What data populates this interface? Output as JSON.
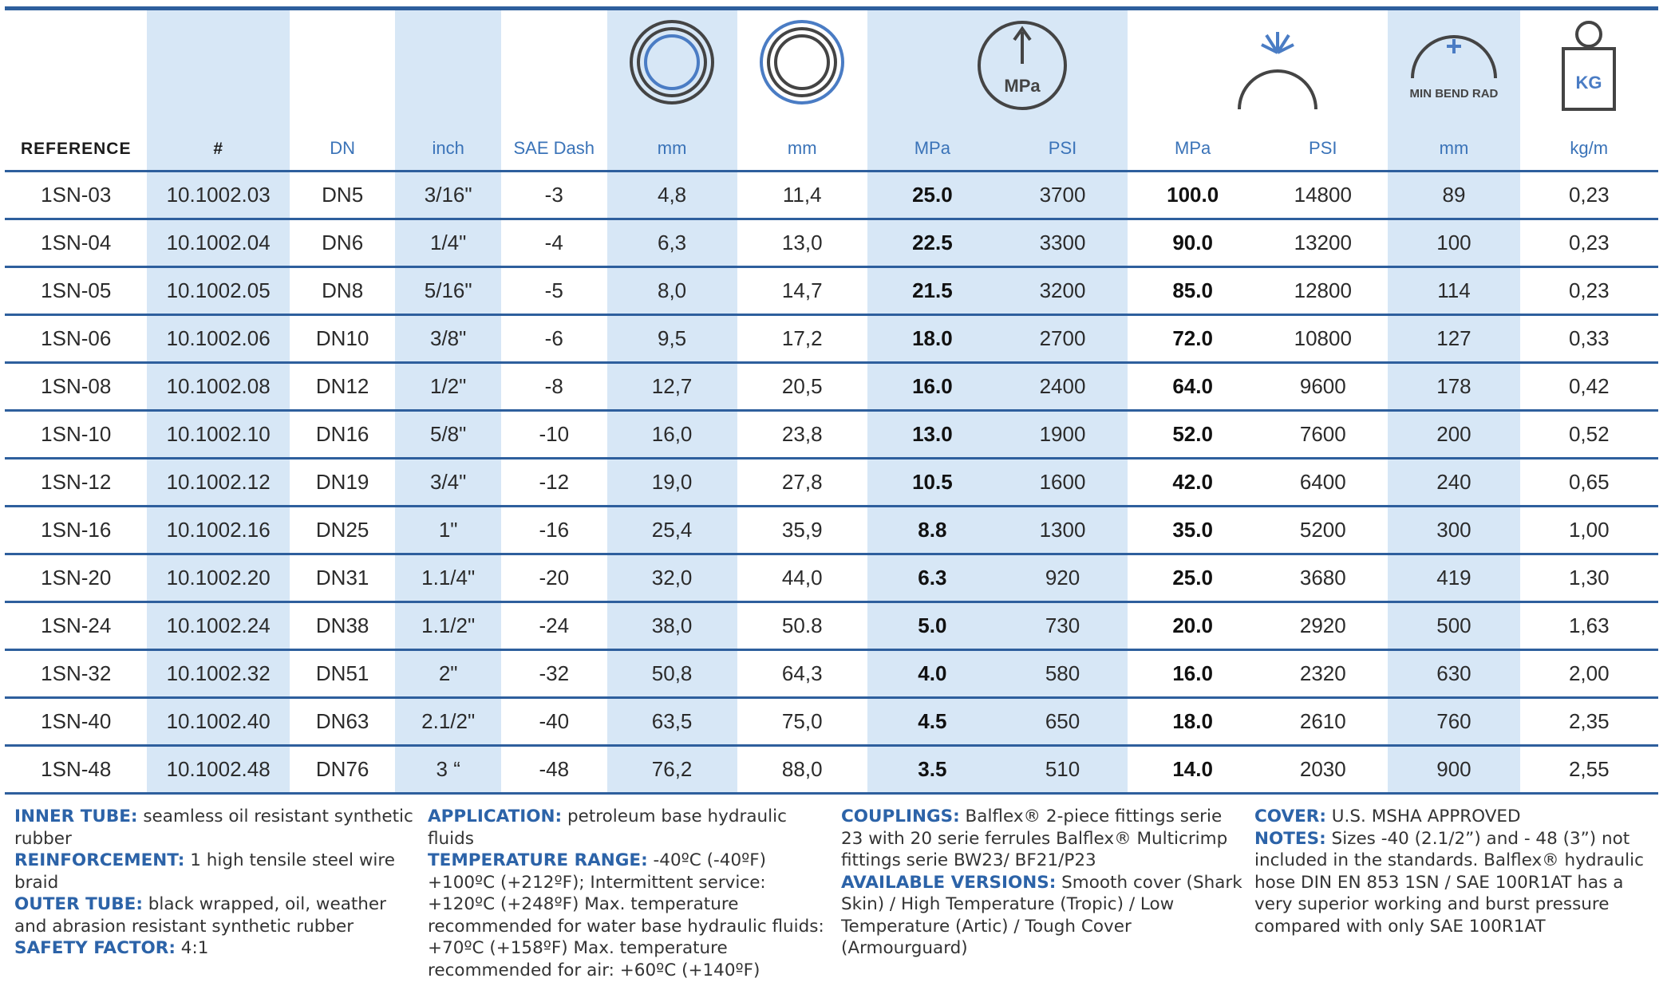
{
  "colors": {
    "accent": "#2e5f9d",
    "label_blue": "#3a73b8",
    "shade": "#d7e7f6"
  },
  "header": {
    "reference": "REFERENCE",
    "number": "#",
    "dn": "DN",
    "inch": "inch",
    "sae": "SAE Dash",
    "id_mm": "mm",
    "od_mm": "mm",
    "wp_mpa": "MPa",
    "wp_psi": "PSI",
    "bp_mpa": "MPa",
    "bp_psi": "PSI",
    "bend_mm": "mm",
    "weight": "kg/m",
    "icons": {
      "inner": "inner-diameter-icon",
      "outer": "outer-diameter-icon",
      "working": "working-pressure-gauge-icon",
      "burst": "burst-pressure-icon",
      "bend": "min-bend-radius-icon",
      "weight": "weight-icon"
    },
    "gauge_text": "MPa",
    "bend_text": "MIN BEND RAD",
    "weight_text": "KG"
  },
  "rows": [
    {
      "ref": "1SN-03",
      "num": "10.1002.03",
      "dn": "DN5",
      "inch": "3/16\"",
      "sae": "-3",
      "id": "4,8",
      "od": "11,4",
      "wp_mpa": "25.0",
      "wp_psi": "3700",
      "bp_mpa": "100.0",
      "bp_psi": "14800",
      "bend": "89",
      "kg": "0,23"
    },
    {
      "ref": "1SN-04",
      "num": "10.1002.04",
      "dn": "DN6",
      "inch": "1/4\"",
      "sae": "-4",
      "id": "6,3",
      "od": "13,0",
      "wp_mpa": "22.5",
      "wp_psi": "3300",
      "bp_mpa": "90.0",
      "bp_psi": "13200",
      "bend": "100",
      "kg": "0,23"
    },
    {
      "ref": "1SN-05",
      "num": "10.1002.05",
      "dn": "DN8",
      "inch": "5/16\"",
      "sae": "-5",
      "id": "8,0",
      "od": "14,7",
      "wp_mpa": "21.5",
      "wp_psi": "3200",
      "bp_mpa": "85.0",
      "bp_psi": "12800",
      "bend": "114",
      "kg": "0,23"
    },
    {
      "ref": "1SN-06",
      "num": "10.1002.06",
      "dn": "DN10",
      "inch": "3/8\"",
      "sae": "-6",
      "id": "9,5",
      "od": "17,2",
      "wp_mpa": "18.0",
      "wp_psi": "2700",
      "bp_mpa": "72.0",
      "bp_psi": "10800",
      "bend": "127",
      "kg": "0,33"
    },
    {
      "ref": "1SN-08",
      "num": "10.1002.08",
      "dn": "DN12",
      "inch": "1/2\"",
      "sae": "-8",
      "id": "12,7",
      "od": "20,5",
      "wp_mpa": "16.0",
      "wp_psi": "2400",
      "bp_mpa": "64.0",
      "bp_psi": "9600",
      "bend": "178",
      "kg": "0,42"
    },
    {
      "ref": "1SN-10",
      "num": "10.1002.10",
      "dn": "DN16",
      "inch": "5/8\"",
      "sae": "-10",
      "id": "16,0",
      "od": "23,8",
      "wp_mpa": "13.0",
      "wp_psi": "1900",
      "bp_mpa": "52.0",
      "bp_psi": "7600",
      "bend": "200",
      "kg": "0,52"
    },
    {
      "ref": "1SN-12",
      "num": "10.1002.12",
      "dn": "DN19",
      "inch": "3/4\"",
      "sae": "-12",
      "id": "19,0",
      "od": "27,8",
      "wp_mpa": "10.5",
      "wp_psi": "1600",
      "bp_mpa": "42.0",
      "bp_psi": "6400",
      "bend": "240",
      "kg": "0,65"
    },
    {
      "ref": "1SN-16",
      "num": "10.1002.16",
      "dn": "DN25",
      "inch": "1\"",
      "sae": "-16",
      "id": "25,4",
      "od": "35,9",
      "wp_mpa": "8.8",
      "wp_psi": "1300",
      "bp_mpa": "35.0",
      "bp_psi": "5200",
      "bend": "300",
      "kg": "1,00"
    },
    {
      "ref": "1SN-20",
      "num": "10.1002.20",
      "dn": "DN31",
      "inch": "1.1/4\"",
      "sae": "-20",
      "id": "32,0",
      "od": "44,0",
      "wp_mpa": "6.3",
      "wp_psi": "920",
      "bp_mpa": "25.0",
      "bp_psi": "3680",
      "bend": "419",
      "kg": "1,30"
    },
    {
      "ref": "1SN-24",
      "num": "10.1002.24",
      "dn": "DN38",
      "inch": "1.1/2\"",
      "sae": "-24",
      "id": "38,0",
      "od": "50.8",
      "wp_mpa": "5.0",
      "wp_psi": "730",
      "bp_mpa": "20.0",
      "bp_psi": "2920",
      "bend": "500",
      "kg": "1,63"
    },
    {
      "ref": "1SN-32",
      "num": "10.1002.32",
      "dn": "DN51",
      "inch": "2\"",
      "sae": "-32",
      "id": "50,8",
      "od": "64,3",
      "wp_mpa": "4.0",
      "wp_psi": "580",
      "bp_mpa": "16.0",
      "bp_psi": "2320",
      "bend": "630",
      "kg": "2,00"
    },
    {
      "ref": "1SN-40",
      "num": "10.1002.40",
      "dn": "DN63",
      "inch": "2.1/2\"",
      "sae": "-40",
      "id": "63,5",
      "od": "75,0",
      "wp_mpa": "4.5",
      "wp_psi": "650",
      "bp_mpa": "18.0",
      "bp_psi": "2610",
      "bend": "760",
      "kg": "2,35"
    },
    {
      "ref": "1SN-48",
      "num": "10.1002.48",
      "dn": "DN76",
      "inch": "3 “",
      "sae": "-48",
      "id": "76,2",
      "od": "88,0",
      "wp_mpa": "3.5",
      "wp_psi": "510",
      "bp_mpa": "14.0",
      "bp_psi": "2030",
      "bend": "900",
      "kg": "2,55"
    }
  ],
  "notes": {
    "col1": [
      {
        "k": "INNER TUBE:",
        "v": " seamless oil resistant synthetic rubber"
      },
      {
        "k": "REINFORCEMENT:",
        "v": " 1 high tensile steel wire braid"
      },
      {
        "k": "OUTER TUBE:",
        "v": " black wrapped, oil, weather and abrasion resistant synthetic rubber"
      },
      {
        "k": "SAFETY FACTOR:",
        "v": " 4:1"
      }
    ],
    "col2": [
      {
        "k": "APPLICATION:",
        "v": " petroleum base hydraulic fluids"
      },
      {
        "k": "TEMPERATURE RANGE:",
        "v": " -40ºC (-40ºF) +100ºC (+212ºF); Intermittent service: +120ºC (+248ºF) Max. temperature recommended for water base hydraulic fluids: +70ºC (+158ºF) Max. temperature recommended for air: +60ºC (+140ºF)"
      }
    ],
    "col3": [
      {
        "k": "COUPLINGS:",
        "v": " Balflex® 2-piece fittings serie 23 with 20 serie ferrules Balflex® Multicrimp fittings serie BW23/ BF21/P23"
      },
      {
        "k": "AVAILABLE VERSIONS:",
        "v": " Smooth cover (Shark Skin) / High Temperature (Tropic) / Low Temperature (Artic) / Tough Cover (Armourguard)"
      }
    ],
    "col4": [
      {
        "k": "COVER:",
        "v": " U.S. MSHA APPROVED"
      },
      {
        "k": "NOTES:",
        "v": " Sizes -40 (2.1/2”) and - 48 (3”) not included in the standards. Balflex® hydraulic hose DIN EN 853 1SN / SAE 100R1AT has a very superior working and burst pressure compared with only SAE 100R1AT"
      }
    ]
  }
}
